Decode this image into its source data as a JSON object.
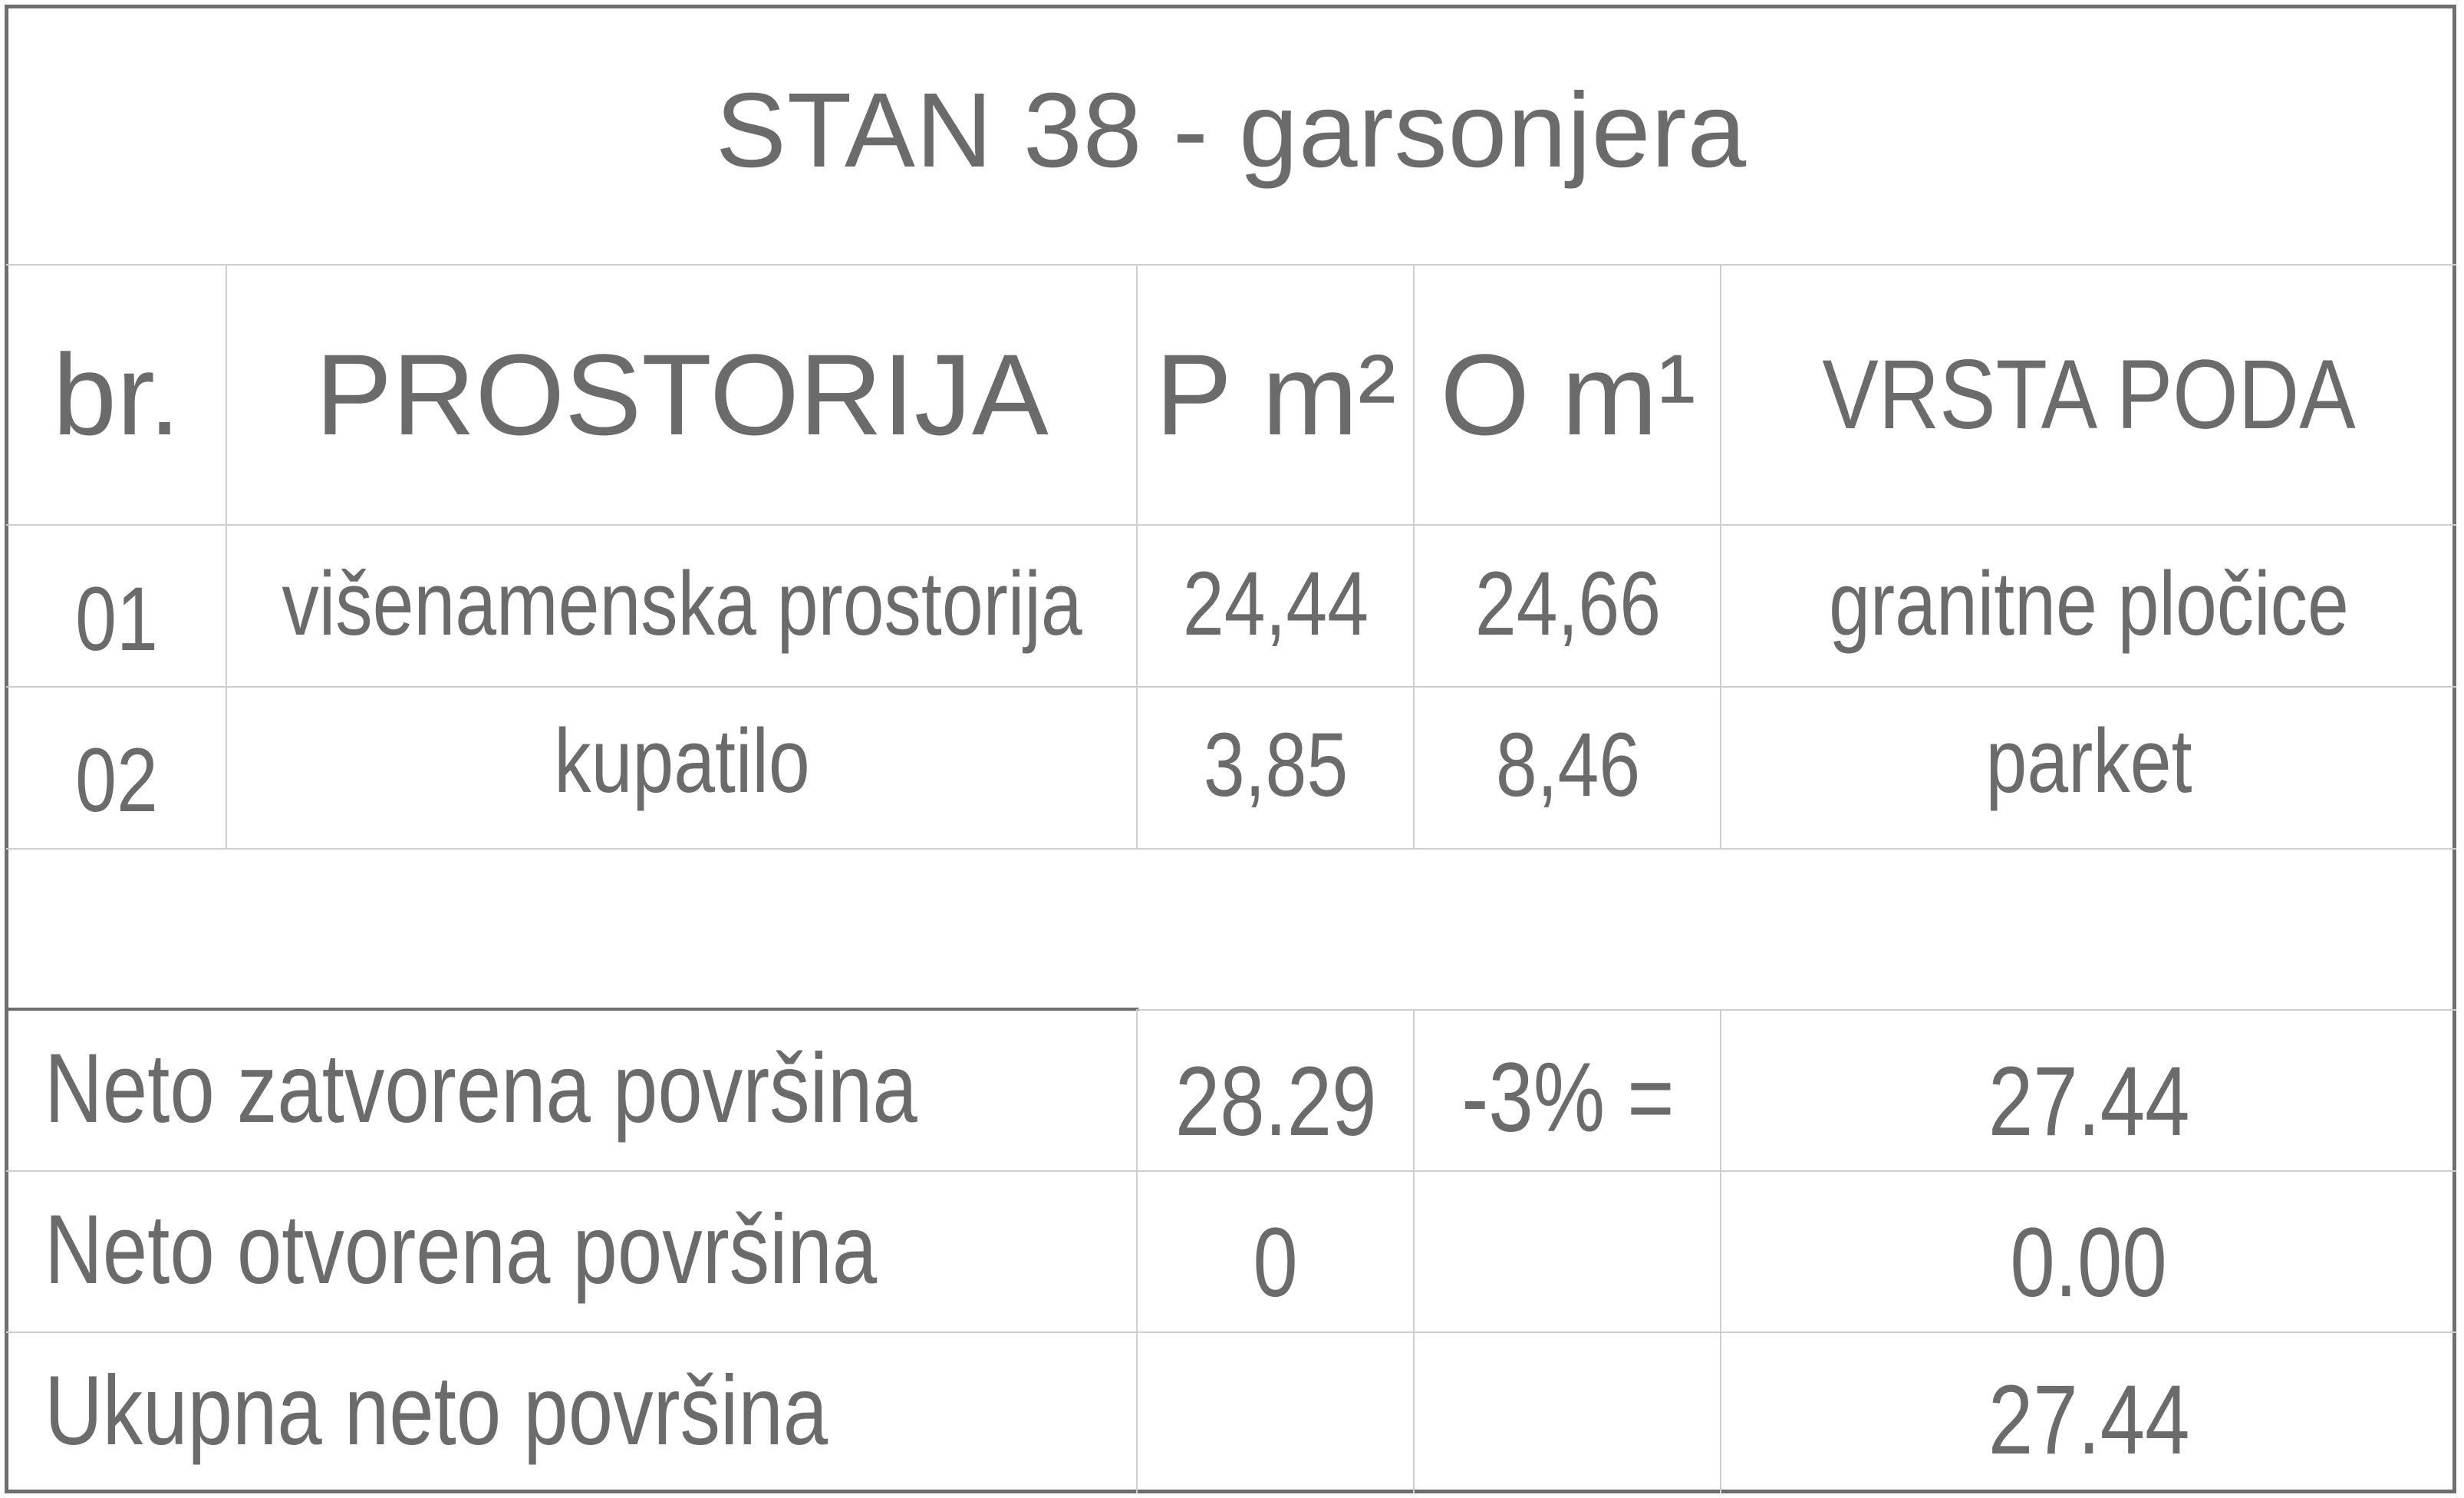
{
  "title": "STAN 38 - garsonjera",
  "headers": {
    "no": "br.",
    "room": "PROSTORIJA",
    "area": "P m²",
    "perimeter": "O m¹",
    "floor": "VRSTA PODA"
  },
  "rows": [
    {
      "no": "01",
      "room": "višenamenska prostorija",
      "area": "24,44",
      "perimeter": "24,66",
      "floor": "granitne pločice"
    },
    {
      "no": "02",
      "room": "kupatilo",
      "area": "3,85",
      "perimeter": "8,46",
      "floor": "parket"
    }
  ],
  "summary": [
    {
      "label": "Neto zatvorena površina",
      "area": "28.29",
      "factor": "-3% =",
      "total": "27.44"
    },
    {
      "label": "Neto otvorena površina",
      "area": "0",
      "factor": "",
      "total": "0.00"
    },
    {
      "label": "Ukupna neto površina",
      "area": "",
      "factor": "",
      "total": "27.44"
    }
  ]
}
